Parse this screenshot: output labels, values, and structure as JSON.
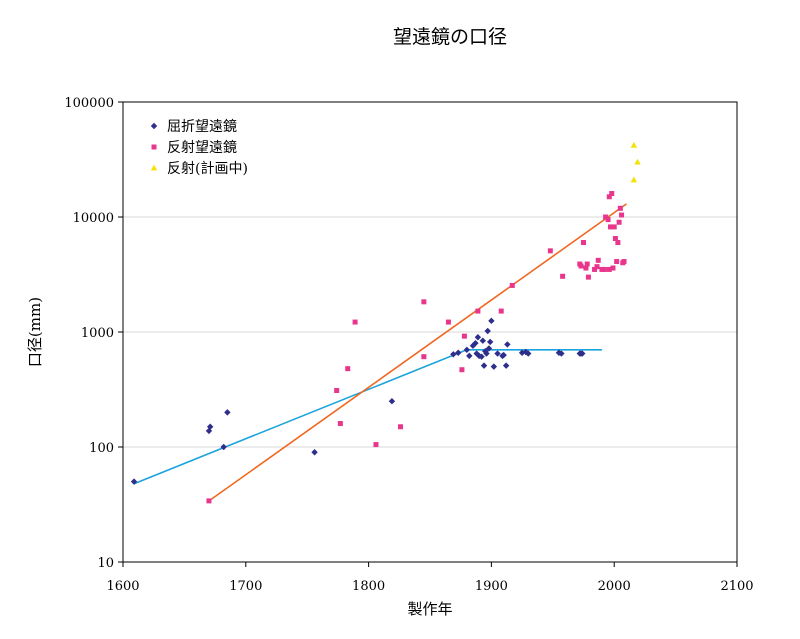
{
  "chart_data": {
    "type": "scatter",
    "title": "望遠鏡の口径",
    "xlabel": "製作年",
    "ylabel": "口径(mm)",
    "xlim": [
      1600,
      2100
    ],
    "ylim": [
      10,
      100000
    ],
    "y_scale": "log",
    "x_ticks": [
      "1600",
      "1700",
      "1800",
      "1900",
      "2000",
      "2100"
    ],
    "y_ticks": [
      "10",
      "100",
      "1000",
      "10000",
      "100000"
    ],
    "grid": "horizontal",
    "legend_position": "top-left",
    "series": [
      {
        "name": "屈折望遠鏡",
        "color": "#2e2e8c",
        "marker": "diamond",
        "points": [
          [
            1609,
            50
          ],
          [
            1670,
            138
          ],
          [
            1671,
            150
          ],
          [
            1682,
            100
          ],
          [
            1685,
            200
          ],
          [
            1756,
            90
          ],
          [
            1819,
            250
          ],
          [
            1869,
            640
          ],
          [
            1873,
            660
          ],
          [
            1880,
            700
          ],
          [
            1882,
            620
          ],
          [
            1885,
            760
          ],
          [
            1887,
            800
          ],
          [
            1888,
            650
          ],
          [
            1889,
            900
          ],
          [
            1890,
            620
          ],
          [
            1892,
            610
          ],
          [
            1893,
            840
          ],
          [
            1894,
            510
          ],
          [
            1895,
            680
          ],
          [
            1896,
            650
          ],
          [
            1897,
            1020
          ],
          [
            1898,
            720
          ],
          [
            1899,
            820
          ],
          [
            1900,
            1250
          ],
          [
            1902,
            500
          ],
          [
            1905,
            650
          ],
          [
            1909,
            620
          ],
          [
            1910,
            630
          ],
          [
            1912,
            510
          ],
          [
            1913,
            780
          ],
          [
            1925,
            660
          ],
          [
            1928,
            670
          ],
          [
            1930,
            650
          ],
          [
            1955,
            660
          ],
          [
            1957,
            650
          ],
          [
            1972,
            650
          ],
          [
            1973,
            650
          ],
          [
            1974,
            650
          ]
        ]
      },
      {
        "name": "反射望遠鏡",
        "color": "#e8368c",
        "marker": "square",
        "points": [
          [
            1670,
            34
          ],
          [
            1774,
            310
          ],
          [
            1777,
            160
          ],
          [
            1783,
            480
          ],
          [
            1789,
            1220
          ],
          [
            1806,
            105
          ],
          [
            1826,
            150
          ],
          [
            1845,
            1830
          ],
          [
            1845,
            610
          ],
          [
            1865,
            1220
          ],
          [
            1876,
            470
          ],
          [
            1878,
            920
          ],
          [
            1889,
            1520
          ],
          [
            1908,
            1520
          ],
          [
            1917,
            2540
          ],
          [
            1948,
            5080
          ],
          [
            1958,
            3050
          ],
          [
            1972,
            3900
          ],
          [
            1973,
            3750
          ],
          [
            1975,
            6000
          ],
          [
            1977,
            3600
          ],
          [
            1978,
            3900
          ],
          [
            1979,
            3000
          ],
          [
            1984,
            3500
          ],
          [
            1986,
            3700
          ],
          [
            1987,
            4200
          ],
          [
            1990,
            3500
          ],
          [
            1992,
            3500
          ],
          [
            1993,
            10000
          ],
          [
            1995,
            9500
          ],
          [
            1996,
            3500
          ],
          [
            1997,
            8200
          ],
          [
            1998,
            16000
          ],
          [
            1999,
            3600
          ],
          [
            2000,
            8200
          ],
          [
            2001,
            6500
          ],
          [
            2002,
            4100
          ],
          [
            2003,
            6000
          ],
          [
            2004,
            9000
          ],
          [
            2005,
            11900
          ],
          [
            2006,
            10400
          ],
          [
            2007,
            4000
          ],
          [
            2008,
            4100
          ],
          [
            1996,
            15000
          ]
        ]
      },
      {
        "name": "反射(計画中)",
        "color": "#f4e200",
        "marker": "triangle",
        "points": [
          [
            2016,
            42000
          ],
          [
            2019,
            30000
          ],
          [
            2016,
            21000
          ]
        ]
      }
    ],
    "trendlines": [
      {
        "series": "屈折望遠鏡",
        "color": "#1aa3dd",
        "points": [
          [
            1609,
            48
          ],
          [
            1880,
            700
          ],
          [
            1990,
            700
          ]
        ]
      },
      {
        "series": "反射望遠鏡",
        "color": "#f06820",
        "points": [
          [
            1670,
            34
          ],
          [
            2010,
            13000
          ]
        ]
      }
    ]
  }
}
